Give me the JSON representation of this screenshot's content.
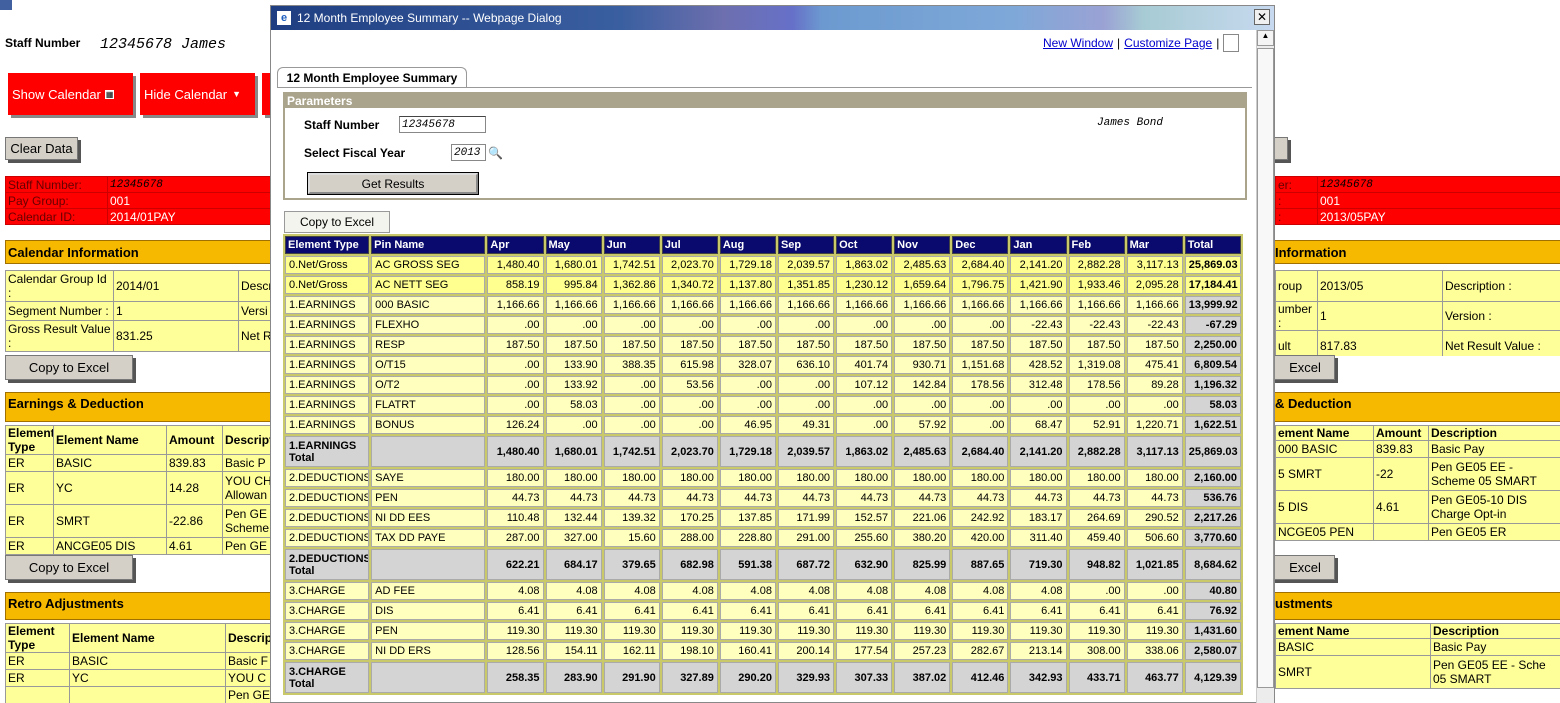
{
  "page": {
    "staff_label": "Staff Number",
    "staff_value": "12345678",
    "staff_name": "James",
    "show_calendar": "Show Calendar",
    "hide_calendar": "Hide Calendar",
    "clear_data": "Clear Data",
    "left": {
      "header_rows": [
        [
          "Staff Number:",
          "12345678"
        ],
        [
          "Pay Group:",
          "001"
        ],
        [
          "Calendar ID:",
          "2014/01PAY"
        ]
      ],
      "calendar_title": "Calendar Information",
      "calendar_rows": [
        [
          "Calendar Group Id :",
          "2014/01",
          "Descr"
        ],
        [
          "Segment Number :",
          "1",
          "Versi"
        ],
        [
          "Gross Result Value :",
          "831.25",
          "Net R"
        ]
      ],
      "copy1": "Copy to Excel",
      "earnings_title": "Earnings & Deduction",
      "earnings_header": [
        "Element Type",
        "Element Name",
        "Amount",
        "Descript"
      ],
      "earnings_rows": [
        [
          "ER",
          "BASIC",
          "839.83",
          "Basic P"
        ],
        [
          "ER",
          "YC",
          "14.28",
          "YOU CH Allowan"
        ],
        [
          "ER",
          "SMRT",
          "-22.86",
          "Pen GE Scheme"
        ],
        [
          "ER",
          "ANCGE05 DIS",
          "4.61",
          "Pen GE"
        ]
      ],
      "copy2": "Copy to Excel",
      "retro_title": "Retro Adjustments",
      "retro_header": [
        "Element Type",
        "Element Name",
        "Descrip"
      ],
      "retro_rows": [
        [
          "ER",
          "BASIC",
          "Basic F"
        ],
        [
          "ER",
          "YC",
          "YOU C"
        ],
        [
          null,
          null,
          "Pen GE"
        ]
      ]
    },
    "right": {
      "header_rows": [
        [
          "er:",
          "12345678"
        ],
        [
          ":",
          "001"
        ],
        [
          ":",
          "2013/05PAY"
        ]
      ],
      "calendar_title": "Information",
      "calendar_rows": [
        [
          "roup",
          "2013/05",
          "Description :"
        ],
        [
          "umber :",
          "1",
          "Version :"
        ],
        [
          "ult",
          "817.83",
          "Net Result Value :"
        ]
      ],
      "copy1": "Excel",
      "earnings_title": "& Deduction",
      "earnings_header": [
        "ement Name",
        "Amount",
        "Description"
      ],
      "earnings_rows": [
        [
          "000 BASIC",
          "839.83",
          "Basic Pay"
        ],
        [
          "5 SMRT",
          "-22",
          "Pen GE05 EE - Scheme 05 SMART"
        ],
        [
          "5 DIS",
          "4.61",
          "Pen GE05-10 DIS Charge Opt-in"
        ],
        [
          "NCGE05 PEN",
          null,
          "Pen GE05 ER"
        ]
      ],
      "copy2": "Excel",
      "retro_title": "ustments",
      "retro_header": [
        "ement Name",
        "Description"
      ],
      "retro_rows": [
        [
          "BASIC",
          "Basic Pay"
        ],
        [
          "SMRT",
          "Pen GE05 EE - Sche 05 SMART"
        ]
      ]
    }
  },
  "dialog": {
    "title": "12 Month Employee Summary -- Webpage Dialog",
    "new_window": "New Window",
    "separator": "|",
    "customize_page": "Customize Page",
    "tab": "12 Month Employee Summary",
    "parameters": "Parameters",
    "staff_label": "Staff Number",
    "staff_value": "12345678",
    "staff_name": "James Bond",
    "year_label": "Select Fiscal Year",
    "year_value": "2013",
    "get_results": "Get Results",
    "copy_to_excel": "Copy to Excel",
    "table": {
      "header": [
        "Element Type",
        "Pin Name",
        "Apr",
        "May",
        "Jun",
        "Jul",
        "Aug",
        "Sep",
        "Oct",
        "Nov",
        "Dec",
        "Jan",
        "Feb",
        "Mar",
        "Total"
      ],
      "rows": [
        [
          "0.Net/Gross",
          "AC GROSS SEG",
          "1,480.40",
          "1,680.01",
          "1,742.51",
          "2,023.70",
          "1,729.18",
          "2,039.57",
          "1,863.02",
          "2,485.63",
          "2,684.40",
          "2,141.20",
          "2,882.28",
          "3,117.13",
          "25,869.03"
        ],
        [
          "0.Net/Gross",
          "AC NETT SEG",
          "858.19",
          "995.84",
          "1,362.86",
          "1,340.72",
          "1,137.80",
          "1,351.85",
          "1,230.12",
          "1,659.64",
          "1,796.75",
          "1,421.90",
          "1,933.46",
          "2,095.28",
          "17,184.41"
        ],
        [
          "1.EARNINGS",
          "000 BASIC",
          "1,166.66",
          "1,166.66",
          "1,166.66",
          "1,166.66",
          "1,166.66",
          "1,166.66",
          "1,166.66",
          "1,166.66",
          "1,166.66",
          "1,166.66",
          "1,166.66",
          "1,166.66",
          "13,999.92"
        ],
        [
          "1.EARNINGS",
          "FLEXHO",
          ".00",
          ".00",
          ".00",
          ".00",
          ".00",
          ".00",
          ".00",
          ".00",
          ".00",
          "-22.43",
          "-22.43",
          "-22.43",
          "-67.29"
        ],
        [
          "1.EARNINGS",
          "RESP",
          "187.50",
          "187.50",
          "187.50",
          "187.50",
          "187.50",
          "187.50",
          "187.50",
          "187.50",
          "187.50",
          "187.50",
          "187.50",
          "187.50",
          "2,250.00"
        ],
        [
          "1.EARNINGS",
          "O/T15",
          ".00",
          "133.90",
          "388.35",
          "615.98",
          "328.07",
          "636.10",
          "401.74",
          "930.71",
          "1,151.68",
          "428.52",
          "1,319.08",
          "475.41",
          "6,809.54"
        ],
        [
          "1.EARNINGS",
          "O/T2",
          ".00",
          "133.92",
          ".00",
          "53.56",
          ".00",
          ".00",
          "107.12",
          "142.84",
          "178.56",
          "312.48",
          "178.56",
          "89.28",
          "1,196.32"
        ],
        [
          "1.EARNINGS",
          "FLATRT",
          ".00",
          "58.03",
          ".00",
          ".00",
          ".00",
          ".00",
          ".00",
          ".00",
          ".00",
          ".00",
          ".00",
          ".00",
          "58.03"
        ],
        [
          "1.EARNINGS",
          "BONUS",
          "126.24",
          ".00",
          ".00",
          ".00",
          "46.95",
          "49.31",
          ".00",
          "57.92",
          ".00",
          "68.47",
          "52.91",
          "1,220.71",
          "1,622.51"
        ],
        [
          "1.EARNINGS Total",
          null,
          "1,480.40",
          "1,680.01",
          "1,742.51",
          "2,023.70",
          "1,729.18",
          "2,039.57",
          "1,863.02",
          "2,485.63",
          "2,684.40",
          "2,141.20",
          "2,882.28",
          "3,117.13",
          "25,869.03"
        ],
        [
          "2.DEDUCTIONS",
          "SAYE",
          "180.00",
          "180.00",
          "180.00",
          "180.00",
          "180.00",
          "180.00",
          "180.00",
          "180.00",
          "180.00",
          "180.00",
          "180.00",
          "180.00",
          "2,160.00"
        ],
        [
          "2.DEDUCTIONS",
          "PEN",
          "44.73",
          "44.73",
          "44.73",
          "44.73",
          "44.73",
          "44.73",
          "44.73",
          "44.73",
          "44.73",
          "44.73",
          "44.73",
          "44.73",
          "536.76"
        ],
        [
          "2.DEDUCTIONS",
          "NI DD EES",
          "110.48",
          "132.44",
          "139.32",
          "170.25",
          "137.85",
          "171.99",
          "152.57",
          "221.06",
          "242.92",
          "183.17",
          "264.69",
          "290.52",
          "2,217.26"
        ],
        [
          "2.DEDUCTIONS",
          "TAX DD PAYE",
          "287.00",
          "327.00",
          "15.60",
          "288.00",
          "228.80",
          "291.00",
          "255.60",
          "380.20",
          "420.00",
          "311.40",
          "459.40",
          "506.60",
          "3,770.60"
        ],
        [
          "2.DEDUCTIONS Total",
          null,
          "622.21",
          "684.17",
          "379.65",
          "682.98",
          "591.38",
          "687.72",
          "632.90",
          "825.99",
          "887.65",
          "719.30",
          "948.82",
          "1,021.85",
          "8,684.62"
        ],
        [
          "3.CHARGE",
          "AD FEE",
          "4.08",
          "4.08",
          "4.08",
          "4.08",
          "4.08",
          "4.08",
          "4.08",
          "4.08",
          "4.08",
          "4.08",
          ".00",
          ".00",
          "40.80"
        ],
        [
          "3.CHARGE",
          "DIS",
          "6.41",
          "6.41",
          "6.41",
          "6.41",
          "6.41",
          "6.41",
          "6.41",
          "6.41",
          "6.41",
          "6.41",
          "6.41",
          "6.41",
          "76.92"
        ],
        [
          "3.CHARGE",
          "PEN",
          "119.30",
          "119.30",
          "119.30",
          "119.30",
          "119.30",
          "119.30",
          "119.30",
          "119.30",
          "119.30",
          "119.30",
          "119.30",
          "119.30",
          "1,431.60"
        ],
        [
          "3.CHARGE",
          "NI DD ERS",
          "128.56",
          "154.11",
          "162.11",
          "198.10",
          "160.41",
          "200.14",
          "177.54",
          "257.23",
          "282.67",
          "213.14",
          "308.00",
          "338.06",
          "2,580.07"
        ],
        [
          "3.CHARGE Total",
          null,
          "258.35",
          "283.90",
          "291.90",
          "327.89",
          "290.20",
          "329.93",
          "307.33",
          "387.02",
          "412.46",
          "342.93",
          "433.71",
          "463.77",
          "4,129.39"
        ]
      ]
    }
  }
}
